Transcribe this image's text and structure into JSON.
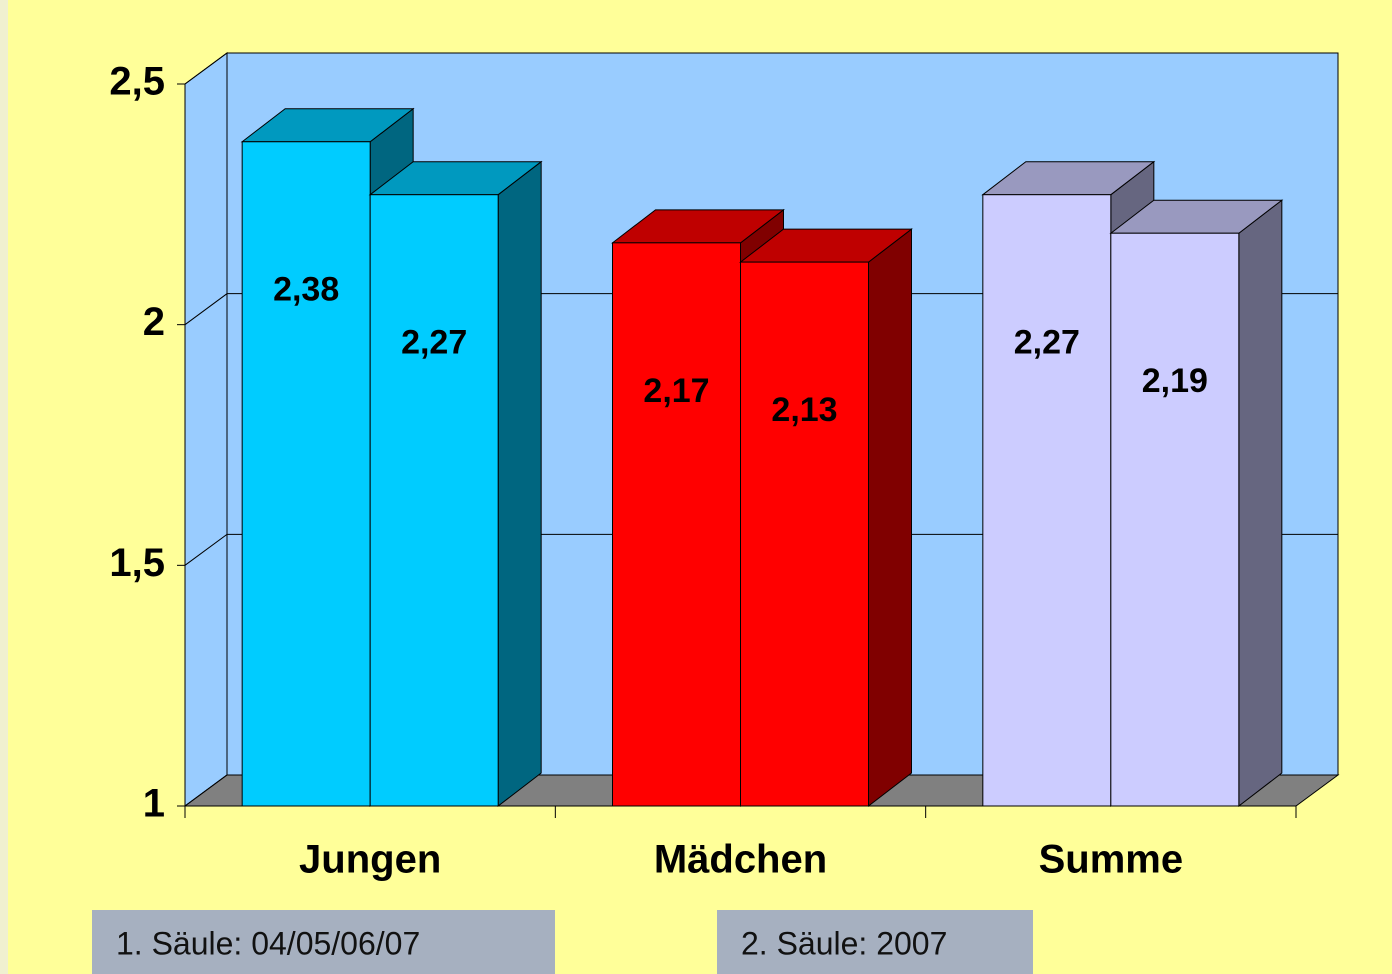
{
  "chart_data": {
    "type": "bar3d",
    "categories": [
      "Jungen",
      "Mädchen",
      "Summe"
    ],
    "colors": [
      "#00ccff",
      "#ff0000",
      "#ccccff"
    ],
    "series": [
      {
        "name": "1. Säule: 04/05/06/07",
        "values": [
          2.38,
          2.17,
          2.27
        ],
        "value_labels": [
          "2,38",
          "2,17",
          "2,27"
        ]
      },
      {
        "name": "2. Säule: 2007",
        "values": [
          2.27,
          2.13,
          2.19
        ],
        "value_labels": [
          "2,27",
          "2,13",
          "2,19"
        ]
      }
    ],
    "ylim": [
      1,
      2.5
    ],
    "yticks": [
      1,
      {
        "value": 1.5,
        "label": "1,5"
      },
      2,
      {
        "value": 2.5,
        "label": "2,5"
      }
    ],
    "grid": true
  }
}
